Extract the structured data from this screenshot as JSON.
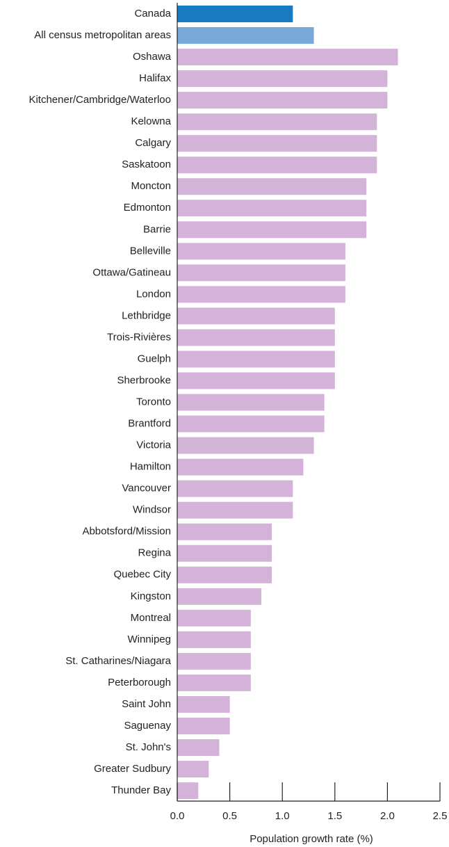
{
  "chart_data": {
    "type": "hbar",
    "categories": [
      "Canada",
      "All census metropolitan areas",
      "Oshawa",
      "Halifax",
      "Kitchener/Cambridge/Waterloo",
      "Kelowna",
      "Calgary",
      "Saskatoon",
      "Moncton",
      "Edmonton",
      "Barrie",
      "Belleville",
      "Ottawa/Gatineau",
      "London",
      "Lethbridge",
      "Trois-Rivières",
      "Guelph",
      "Sherbrooke",
      "Toronto",
      "Brantford",
      "Victoria",
      "Hamilton",
      "Vancouver",
      "Windsor",
      "Abbotsford/Mission",
      "Regina",
      "Quebec City",
      "Kingston",
      "Montreal",
      "Winnipeg",
      "St. Catharines/Niagara",
      "Peterborough",
      "Saint John",
      "Saguenay",
      "St. John's",
      "Greater Sudbury",
      "Thunder Bay"
    ],
    "values": [
      1.1,
      1.3,
      2.1,
      2.0,
      2.0,
      1.9,
      1.9,
      1.9,
      1.8,
      1.8,
      1.8,
      1.6,
      1.6,
      1.6,
      1.5,
      1.5,
      1.5,
      1.5,
      1.4,
      1.4,
      1.3,
      1.2,
      1.1,
      1.1,
      0.9,
      0.9,
      0.9,
      0.8,
      0.7,
      0.7,
      0.7,
      0.7,
      0.5,
      0.5,
      0.4,
      0.3,
      0.2
    ],
    "colors": [
      "#1a7abf",
      "#79a7d8",
      "#d4b3d8",
      "#d4b3d8",
      "#d4b3d8",
      "#d4b3d8",
      "#d4b3d8",
      "#d4b3d8",
      "#d4b3d8",
      "#d4b3d8",
      "#d4b3d8",
      "#d4b3d8",
      "#d4b3d8",
      "#d4b3d8",
      "#d4b3d8",
      "#d4b3d8",
      "#d4b3d8",
      "#d4b3d8",
      "#d4b3d8",
      "#d4b3d8",
      "#d4b3d8",
      "#d4b3d8",
      "#d4b3d8",
      "#d4b3d8",
      "#d4b3d8",
      "#d4b3d8",
      "#d4b3d8",
      "#d4b3d8",
      "#d4b3d8",
      "#d4b3d8",
      "#d4b3d8",
      "#d4b3d8",
      "#d4b3d8",
      "#d4b3d8",
      "#d4b3d8",
      "#d4b3d8",
      "#d4b3d8"
    ],
    "xlabel": "Population growth rate (%)",
    "xlim": [
      0,
      2.5
    ],
    "xticks": [
      {
        "value": 0,
        "label": "0.0"
      },
      0.5,
      {
        "value": 1,
        "label": "1.0"
      },
      1.5,
      {
        "value": 2,
        "label": "2.0"
      },
      2.5
    ]
  }
}
